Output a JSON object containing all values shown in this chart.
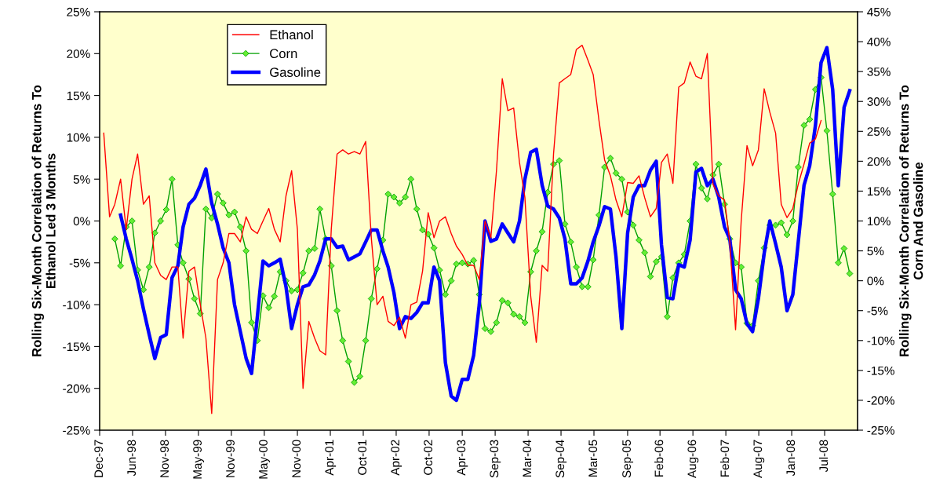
{
  "chart_data": {
    "type": "line",
    "ylabel": "Rolling Six-Month Correlation of Returns To\nEthanol Led 3 Months",
    "y2label": "Rolling Six-Month Correlation of Returns To\nCorn And Gasoline",
    "x": [
      "1998-01",
      "1998-02",
      "1998-03",
      "1998-04",
      "1998-05",
      "1998-06",
      "1998-07",
      "1998-08",
      "1998-09",
      "1998-10",
      "1998-11",
      "1998-12",
      "1999-01",
      "1999-02",
      "1999-03",
      "1999-04",
      "1999-05",
      "1999-06",
      "1999-07",
      "1999-08",
      "1999-09",
      "1999-10",
      "1999-11",
      "1999-12",
      "2000-01",
      "2000-02",
      "2000-03",
      "2000-04",
      "2000-05",
      "2000-06",
      "2000-07",
      "2000-08",
      "2000-09",
      "2000-10",
      "2000-11",
      "2000-12",
      "2001-01",
      "2001-02",
      "2001-03",
      "2001-04",
      "2001-05",
      "2001-06",
      "2001-07",
      "2001-08",
      "2001-09",
      "2001-10",
      "2001-11",
      "2001-12",
      "2002-01",
      "2002-02",
      "2002-03",
      "2002-04",
      "2002-05",
      "2002-06",
      "2002-07",
      "2002-08",
      "2002-09",
      "2002-10",
      "2002-11",
      "2002-12",
      "2003-01",
      "2003-02",
      "2003-03",
      "2003-04",
      "2003-05",
      "2003-06",
      "2003-07",
      "2003-08",
      "2003-09",
      "2003-10",
      "2003-11",
      "2003-12",
      "2004-01",
      "2004-02",
      "2004-03",
      "2004-04",
      "2004-05",
      "2004-06",
      "2004-07",
      "2004-08",
      "2004-09",
      "2004-10",
      "2004-11",
      "2004-12",
      "2005-01",
      "2005-02",
      "2005-03",
      "2005-04",
      "2005-05",
      "2005-06",
      "2005-07",
      "2005-08",
      "2005-09",
      "2005-10",
      "2005-11",
      "2005-12",
      "2006-01",
      "2006-02",
      "2006-03",
      "2006-04",
      "2006-05",
      "2006-06",
      "2006-07",
      "2006-08",
      "2006-09",
      "2006-10",
      "2006-11",
      "2006-12",
      "2007-01",
      "2007-02",
      "2007-03",
      "2007-04",
      "2007-05",
      "2007-06",
      "2007-07",
      "2007-08",
      "2007-09",
      "2007-10",
      "2007-11",
      "2007-12",
      "2008-01",
      "2008-02",
      "2008-03",
      "2008-04",
      "2008-05",
      "2008-06",
      "2008-07",
      "2008-08",
      "2008-09",
      "2008-10",
      "2008-11",
      "2008-12"
    ],
    "xlim": [
      "1997-12-10",
      "2009-01-12"
    ],
    "xticks": [
      {
        "value": "1997-12-10",
        "label": "Dec-97"
      },
      {
        "value": "1998-06-04",
        "label": "Jun-98"
      },
      {
        "value": "1998-11-27",
        "label": "Nov-98"
      },
      {
        "value": "1999-05-22",
        "label": "May-99"
      },
      {
        "value": "1999-11-14",
        "label": "Nov-99"
      },
      {
        "value": "2000-05-08",
        "label": "May-00"
      },
      {
        "value": "2000-11-01",
        "label": "Nov-00"
      },
      {
        "value": "2001-04-26",
        "label": "Apr-01"
      },
      {
        "value": "2001-10-19",
        "label": "Oct-01"
      },
      {
        "value": "2002-04-13",
        "label": "Apr-02"
      },
      {
        "value": "2002-10-06",
        "label": "Oct-02"
      },
      {
        "value": "2003-04-01",
        "label": "Apr-03"
      },
      {
        "value": "2003-09-24",
        "label": "Sep-03"
      },
      {
        "value": "2004-03-18",
        "label": "Mar-04"
      },
      {
        "value": "2004-09-10",
        "label": "Sep-04"
      },
      {
        "value": "2005-03-05",
        "label": "Mar-05"
      },
      {
        "value": "2005-09-01",
        "label": "Sep-05"
      },
      {
        "value": "2006-02-21",
        "label": "Feb-06"
      },
      {
        "value": "2006-08-16",
        "label": "Aug-06"
      },
      {
        "value": "2007-02-08",
        "label": "Feb-07"
      },
      {
        "value": "2007-08-03",
        "label": "Aug-07"
      },
      {
        "value": "2008-01-26",
        "label": "Jan-08"
      },
      {
        "value": "2008-07-20",
        "label": "Jul-08"
      }
    ],
    "ylim": [
      -25,
      25
    ],
    "yticks": [
      {
        "value": -25,
        "label": "-25%"
      },
      {
        "value": -20,
        "label": "-20%"
      },
      {
        "value": -15,
        "label": "-15%"
      },
      {
        "value": -10,
        "label": "-10%"
      },
      {
        "value": -5,
        "label": "-5%"
      },
      {
        "value": 0,
        "label": "0%"
      },
      {
        "value": 5,
        "label": "5%"
      },
      {
        "value": 10,
        "label": "10%"
      },
      {
        "value": 15,
        "label": "15%"
      },
      {
        "value": 20,
        "label": "20%"
      },
      {
        "value": 25,
        "label": "25%"
      }
    ],
    "y2lim": [
      -25,
      45
    ],
    "y2ticks": [
      {
        "value": -25,
        "label": "-25%"
      },
      {
        "value": -20,
        "label": "-20%"
      },
      {
        "value": -15,
        "label": "-15%"
      },
      {
        "value": -10,
        "label": "-10%"
      },
      {
        "value": -5,
        "label": "-5%"
      },
      {
        "value": 0,
        "label": "0%"
      },
      {
        "value": 5,
        "label": "5%"
      },
      {
        "value": 10,
        "label": "10%"
      },
      {
        "value": 15,
        "label": "15%"
      },
      {
        "value": 20,
        "label": "20%"
      },
      {
        "value": 25,
        "label": "25%"
      },
      {
        "value": 30,
        "label": "30%"
      },
      {
        "value": 35,
        "label": "35%"
      },
      {
        "value": 40,
        "label": "40%"
      },
      {
        "value": 45,
        "label": "45%"
      }
    ],
    "grid": false,
    "legend": "top left",
    "series": [
      {
        "name": "Ethanol",
        "color": "#ff0000",
        "line_style": "solid",
        "marker": "none",
        "values": [
          10.5,
          0.5,
          2,
          5,
          -1,
          5,
          8,
          2,
          3,
          -5,
          -6.5,
          -7,
          -5.5,
          -5.5,
          -14,
          -6,
          -5.5,
          -10,
          -14,
          -23,
          -7,
          -5,
          -1.5,
          -1.5,
          -2.5,
          0.5,
          -1,
          -1.5,
          0,
          1.5,
          -1,
          -2.5,
          3,
          6,
          -1,
          -20,
          -12,
          -14,
          -15.5,
          -16,
          -1,
          8,
          8.5,
          8,
          8.3,
          8,
          9.5,
          -2,
          -10,
          -9,
          -12,
          -12.5,
          -11.5,
          -14,
          -10,
          -9.7,
          -6,
          1,
          -2,
          0,
          0.5,
          -1.5,
          -3,
          -4,
          -5.3,
          -5.3,
          -7,
          0,
          -2,
          6,
          17,
          13.2,
          13.5,
          7,
          2.8,
          -9,
          -14.5,
          -5.3,
          -6,
          8,
          16.5,
          17,
          17.5,
          20.5,
          21,
          19.2,
          17.5,
          12,
          7.3,
          5.4,
          2.5,
          0.5,
          4.6,
          4.5,
          5.4,
          2.8,
          0.5,
          1.5,
          7,
          8,
          4.5,
          16,
          16.5,
          19,
          17.3,
          17,
          20,
          4.4,
          3,
          2.5,
          -2.5,
          -13,
          0,
          9,
          6.6,
          8.5,
          15.8,
          13,
          10.5,
          2,
          0.4,
          1.5,
          4.4,
          6.8,
          9.3,
          9.8,
          12,
          null,
          null,
          null,
          null,
          null
        ]
      },
      {
        "name": "Corn",
        "color": "#00a000",
        "axis": "y2",
        "line_style": "solid",
        "marker": "diamond",
        "values": [
          null,
          null,
          7,
          2.5,
          9,
          10,
          1.8,
          -1.5,
          2.3,
          8,
          10,
          11.9,
          17,
          6,
          3,
          0.3,
          -3,
          -5.5,
          12,
          10.5,
          14.5,
          13,
          11,
          11.5,
          9,
          5,
          -7,
          -10,
          -2.5,
          -4.5,
          -2.6,
          1.5,
          0,
          -1.7,
          -1.5,
          1.3,
          5,
          5.4,
          12,
          7,
          2.5,
          -5,
          -10,
          -13.5,
          -17,
          -16,
          -10,
          -3,
          2,
          6.8,
          14.5,
          14,
          13,
          14,
          17,
          12,
          8.5,
          7.8,
          5.5,
          1.8,
          -2.3,
          0,
          2.8,
          3,
          2.8,
          3.4,
          -2.3,
          -8,
          -8.5,
          -7,
          -3.3,
          -3.7,
          -5.6,
          -6,
          -7,
          1.5,
          5,
          8.2,
          14.8,
          19.5,
          20.1,
          9.5,
          6.5,
          2.3,
          -1,
          -1,
          3.5,
          11,
          19,
          20.5,
          18,
          17,
          11.5,
          9.3,
          6.8,
          4.7,
          0.7,
          3.2,
          4,
          -6,
          0.5,
          3,
          4.4,
          10,
          19.5,
          15.5,
          13.7,
          17.7,
          19.5,
          12.8,
          7,
          3,
          2.3,
          -7.1,
          -7.5,
          0,
          5.5,
          9.3,
          9.3,
          9.7,
          7.7,
          10,
          19,
          26,
          27,
          32,
          34,
          25.1,
          14.5,
          3,
          5.4,
          1.2
        ]
      },
      {
        "name": "Gasoline",
        "color": "#0000ff",
        "axis": "y2",
        "line_style": "solid",
        "marker": "none",
        "values": [
          null,
          null,
          null,
          11,
          7,
          3.6,
          0,
          -4.7,
          -9,
          -13,
          -9.5,
          -9,
          0.5,
          2.5,
          9,
          12.8,
          13.8,
          16,
          18.7,
          13,
          9.5,
          5.5,
          3,
          -4,
          -8.5,
          -13,
          -15.5,
          -6,
          3.3,
          2.5,
          3,
          3.6,
          -1,
          -8,
          -4,
          -1,
          -0.7,
          1,
          3.3,
          7,
          7,
          5.6,
          5.8,
          3.5,
          4,
          4.5,
          6.5,
          8.5,
          8.5,
          5,
          2.3,
          -2,
          -8,
          -6,
          -6.3,
          -5.3,
          -3.7,
          -3.7,
          2.3,
          0,
          -13.7,
          -19.3,
          -20,
          -16.5,
          -16.5,
          -12.5,
          -4,
          10,
          6.6,
          7,
          9.5,
          8,
          6.5,
          10,
          17,
          21.5,
          22,
          16,
          12.5,
          12,
          10.5,
          7,
          -0.5,
          -0.5,
          0.5,
          3.3,
          6.5,
          9.2,
          12.4,
          12,
          4,
          -8,
          8,
          14,
          15.9,
          15.9,
          18.5,
          20,
          6,
          -2.8,
          -3,
          2.7,
          2.3,
          6.8,
          18.2,
          18.8,
          15.9,
          17,
          14,
          9,
          7,
          -1.5,
          -3,
          -7.2,
          -8.5,
          -3,
          4.6,
          10,
          6.2,
          2.3,
          -5,
          -2.3,
          6.5,
          16,
          19.2,
          26,
          36.5,
          39,
          32,
          15.9,
          29,
          31.8
        ]
      }
    ]
  }
}
